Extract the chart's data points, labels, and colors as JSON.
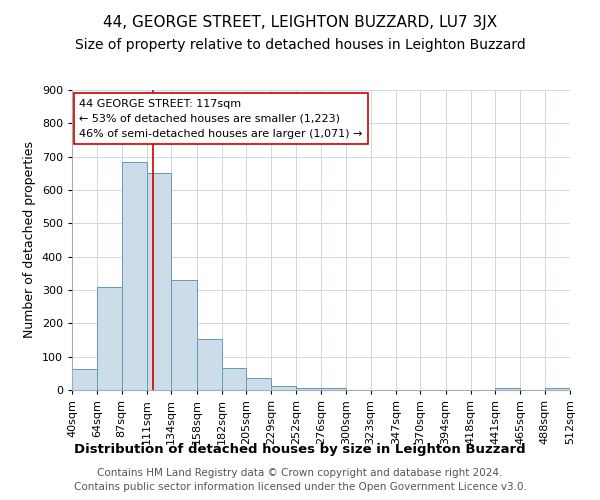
{
  "title": "44, GEORGE STREET, LEIGHTON BUZZARD, LU7 3JX",
  "subtitle": "Size of property relative to detached houses in Leighton Buzzard",
  "xlabel": "Distribution of detached houses by size in Leighton Buzzard",
  "ylabel": "Number of detached properties",
  "footnote1": "Contains HM Land Registry data © Crown copyright and database right 2024.",
  "footnote2": "Contains public sector information licensed under the Open Government Licence v3.0.",
  "bin_labels": [
    "40sqm",
    "64sqm",
    "87sqm",
    "111sqm",
    "134sqm",
    "158sqm",
    "182sqm",
    "205sqm",
    "229sqm",
    "252sqm",
    "276sqm",
    "300sqm",
    "323sqm",
    "347sqm",
    "370sqm",
    "394sqm",
    "418sqm",
    "441sqm",
    "465sqm",
    "488sqm",
    "512sqm"
  ],
  "bar_heights": [
    63,
    310,
    685,
    650,
    330,
    152,
    65,
    35,
    13,
    5,
    5,
    0,
    0,
    0,
    0,
    0,
    0,
    5,
    0,
    5,
    0
  ],
  "bar_color": "#ccdce8",
  "bar_edge_color": "#6699bb",
  "property_line_x": 117,
  "property_line_color": "#cc0000",
  "ylim": [
    0,
    900
  ],
  "yticks": [
    0,
    100,
    200,
    300,
    400,
    500,
    600,
    700,
    800,
    900
  ],
  "annotation_title": "44 GEORGE STREET: 117sqm",
  "annotation_line1": "← 53% of detached houses are smaller (1,223)",
  "annotation_line2": "46% of semi-detached houses are larger (1,071) →",
  "annotation_box_color": "#ffffff",
  "annotation_box_edge": "#cc0000",
  "bin_edges_sqm": [
    40,
    64,
    87,
    111,
    134,
    158,
    182,
    205,
    229,
    252,
    276,
    300,
    323,
    347,
    370,
    394,
    418,
    441,
    465,
    488,
    512
  ],
  "title_fontsize": 11,
  "subtitle_fontsize": 10,
  "axis_label_fontsize": 9,
  "tick_fontsize": 8,
  "annotation_fontsize": 8,
  "footnote_fontsize": 7.5
}
